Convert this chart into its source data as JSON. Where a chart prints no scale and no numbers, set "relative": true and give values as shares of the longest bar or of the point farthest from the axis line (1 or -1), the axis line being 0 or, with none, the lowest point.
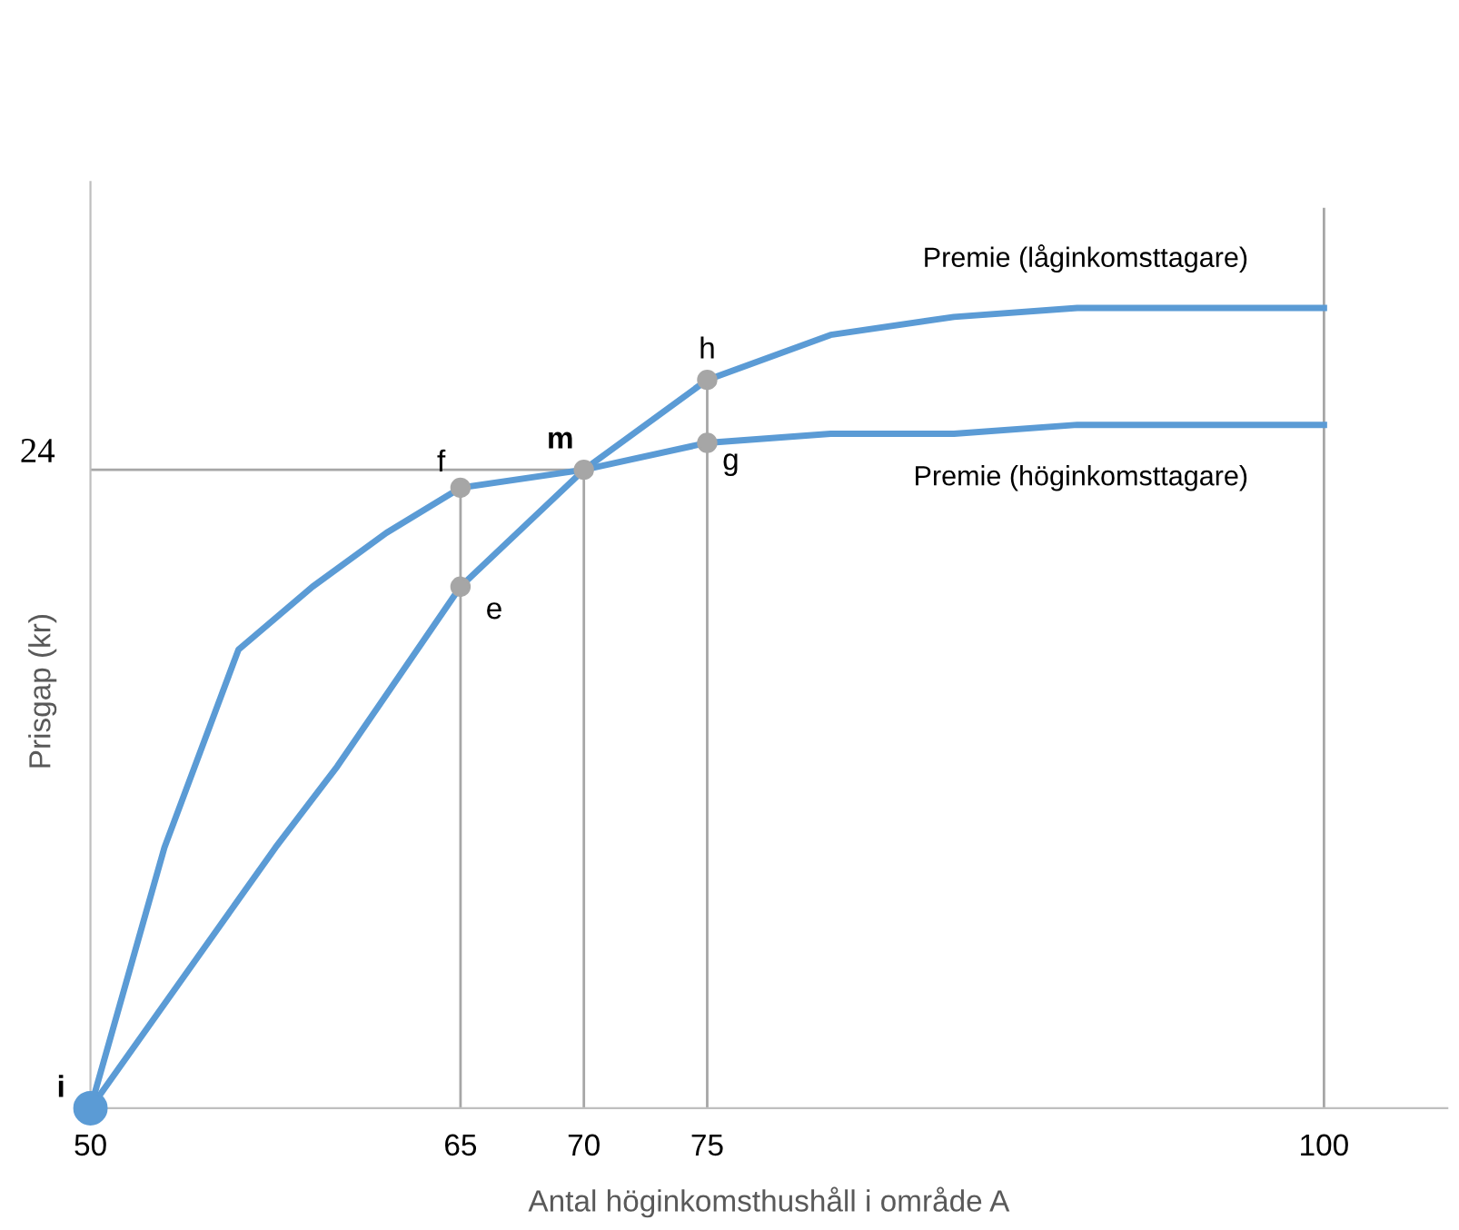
{
  "chart_data": {
    "type": "line",
    "relative": true,
    "xlabel": "Antal höginkomsthushåll i område A",
    "ylabel": "Prisgap (kr)",
    "xlim": [
      50,
      105
    ],
    "xticks": [
      50,
      65,
      70,
      75,
      100
    ],
    "grid": false,
    "legend": false,
    "line_style": "solid",
    "series": [
      {
        "name": "Premie (låginkomsttagare)",
        "color": "#5b9bd5",
        "marker": "none",
        "x": [
          50,
          53,
          56,
          59,
          62,
          65,
          70,
          75,
          80,
          85,
          90,
          100
        ],
        "values": [
          0,
          0.29,
          0.51,
          0.58,
          0.64,
          0.69,
          0.71,
          0.81,
          0.86,
          0.88,
          0.89,
          0.89
        ]
      },
      {
        "name": "Premie (höginkomsttagare)",
        "color": "#5b9bd5",
        "marker": "none",
        "x": [
          50,
          57.5,
          60,
          65,
          70,
          75,
          80,
          85,
          90,
          100
        ],
        "values": [
          0,
          0.29,
          0.38,
          0.58,
          0.71,
          0.74,
          0.75,
          0.75,
          0.76,
          0.76
        ]
      },
      {
        "type": "line",
        "color": "#a6a6a6",
        "marker": "none",
        "x": [
          50,
          70
        ],
        "values": [
          0.71,
          0.71
        ]
      },
      {
        "type": "line",
        "color": "#a6a6a6",
        "marker": "none",
        "x": [
          65,
          65
        ],
        "values": [
          0,
          0.69
        ]
      },
      {
        "type": "line",
        "color": "#a6a6a6",
        "marker": "none",
        "x": [
          70,
          70
        ],
        "values": [
          0,
          0.71
        ]
      },
      {
        "type": "line",
        "color": "#a6a6a6",
        "marker": "none",
        "x": [
          75,
          75
        ],
        "values": [
          0,
          0.81
        ]
      },
      {
        "type": "line",
        "color": "#a6a6a6",
        "marker": "none",
        "x": [
          100,
          100
        ],
        "values": [
          0,
          1
        ]
      },
      {
        "type": "scatter",
        "color": "#a6a6a6",
        "marker": "circle",
        "x": [
          65,
          65,
          70,
          75,
          75
        ],
        "values": [
          0.58,
          0.69,
          0.71,
          0.74,
          0.81
        ]
      },
      {
        "type": "scatter",
        "color": "#5b9bd5",
        "marker": "circle",
        "x": [
          50
        ],
        "values": [
          0
        ]
      }
    ],
    "annotations": [
      {
        "text": "24",
        "x": 50,
        "y": 0.71
      },
      {
        "text": "i",
        "x": 50,
        "y": 0
      },
      {
        "text": "e",
        "x": 65,
        "y": 0.58
      },
      {
        "text": "f",
        "x": 65,
        "y": 0.69
      },
      {
        "text": "m",
        "x": 70,
        "y": 0.71
      },
      {
        "text": "g",
        "x": 75,
        "y": 0.74
      },
      {
        "text": "h",
        "x": 75,
        "y": 0.81
      }
    ]
  }
}
